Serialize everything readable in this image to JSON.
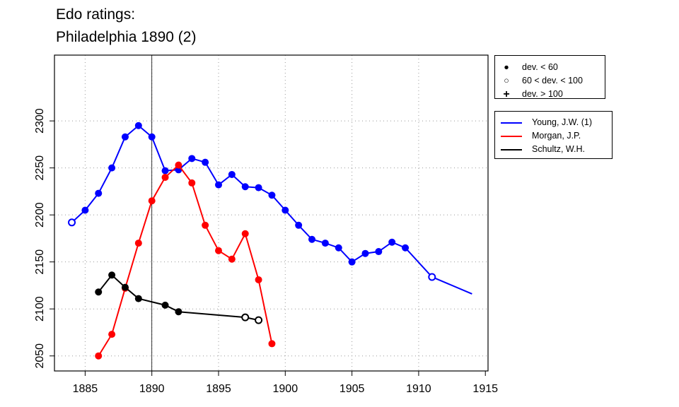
{
  "chart_data": {
    "type": "line",
    "title": [
      "Edo ratings:",
      "Philadelphia 1890 (2)"
    ],
    "xlabel": "",
    "ylabel": "",
    "xlim": [
      1882.7,
      1915.2
    ],
    "ylim": [
      2034,
      2370
    ],
    "x_ticks": [
      1885,
      1890,
      1895,
      1900,
      1905,
      1910,
      1915
    ],
    "y_ticks": [
      2050,
      2100,
      2150,
      2200,
      2250,
      2300
    ],
    "grid": true,
    "reference_line_x": 1890,
    "marker_legend": [
      {
        "marker": "filled",
        "label": "dev. < 60"
      },
      {
        "marker": "open",
        "label": "60 < dev. < 100"
      },
      {
        "marker": "plus",
        "label": "dev. > 100"
      }
    ],
    "series": [
      {
        "name": "Young, J.W. (1)",
        "color": "#0000ff",
        "points": [
          [
            1884,
            2192,
            "open"
          ],
          [
            1885,
            2205,
            "filled"
          ],
          [
            1886,
            2223,
            "filled"
          ],
          [
            1887,
            2250,
            "filled"
          ],
          [
            1888,
            2283,
            "filled"
          ],
          [
            1889,
            2295,
            "filled"
          ],
          [
            1890,
            2283,
            "filled"
          ],
          [
            1891,
            2247,
            "filled"
          ],
          [
            1892,
            2248,
            "filled"
          ],
          [
            1893,
            2260,
            "filled"
          ],
          [
            1894,
            2256,
            "filled"
          ],
          [
            1895,
            2232,
            "filled"
          ],
          [
            1896,
            2243,
            "filled"
          ],
          [
            1897,
            2230,
            "filled"
          ],
          [
            1898,
            2229,
            "filled"
          ],
          [
            1899,
            2221,
            "filled"
          ],
          [
            1900,
            2205,
            "filled"
          ],
          [
            1901,
            2189,
            "filled"
          ],
          [
            1902,
            2174,
            "filled"
          ],
          [
            1903,
            2170,
            "filled"
          ],
          [
            1904,
            2165,
            "filled"
          ],
          [
            1905,
            2150,
            "filled"
          ],
          [
            1906,
            2159,
            "filled"
          ],
          [
            1907,
            2161,
            "filled"
          ],
          [
            1908,
            2171,
            "filled"
          ],
          [
            1909,
            2165,
            "filled"
          ],
          [
            1911,
            2134,
            "open"
          ],
          [
            1914,
            2116,
            "none"
          ]
        ]
      },
      {
        "name": "Morgan, J.P.",
        "color": "#ff0000",
        "points": [
          [
            1886,
            2050,
            "filled"
          ],
          [
            1887,
            2073,
            "filled"
          ],
          [
            1888,
            2122,
            "filled"
          ],
          [
            1889,
            2170,
            "filled"
          ],
          [
            1890,
            2215,
            "filled"
          ],
          [
            1891,
            2240,
            "filled"
          ],
          [
            1892,
            2253,
            "filled"
          ],
          [
            1893,
            2234,
            "filled"
          ],
          [
            1894,
            2189,
            "filled"
          ],
          [
            1895,
            2162,
            "filled"
          ],
          [
            1896,
            2153,
            "filled"
          ],
          [
            1897,
            2180,
            "filled"
          ],
          [
            1898,
            2131,
            "filled"
          ],
          [
            1899,
            2063,
            "filled"
          ]
        ]
      },
      {
        "name": "Schultz, W.H.",
        "color": "#000000",
        "points": [
          [
            1886,
            2118,
            "filled"
          ],
          [
            1887,
            2136,
            "filled"
          ],
          [
            1888,
            2123,
            "filled"
          ],
          [
            1889,
            2111,
            "filled"
          ],
          [
            1891,
            2104,
            "filled"
          ],
          [
            1892,
            2097,
            "filled"
          ],
          [
            1897,
            2091,
            "open"
          ],
          [
            1898,
            2088,
            "open"
          ]
        ]
      }
    ]
  }
}
